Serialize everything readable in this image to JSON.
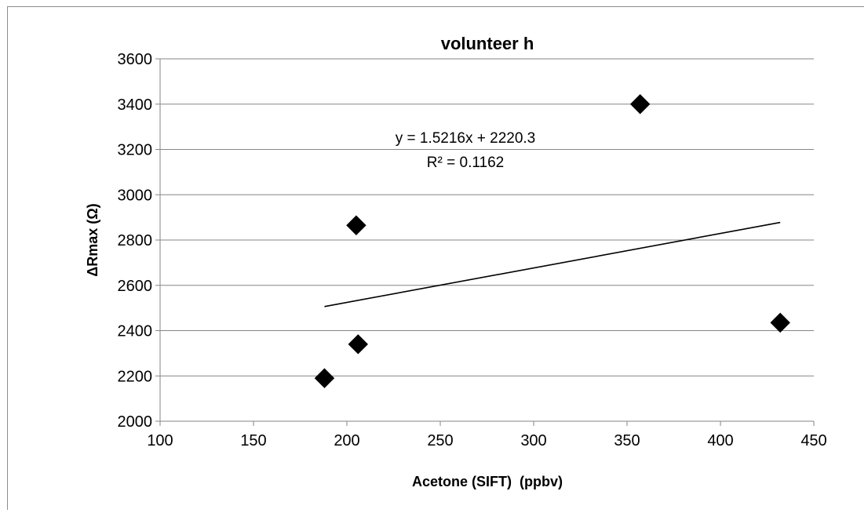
{
  "chart_data": {
    "type": "scatter",
    "title": "volunteer h",
    "xlabel": "Acetone (SIFT)  (ppbv)",
    "ylabel": "ΔRmax (Ω)",
    "xlim": [
      100,
      450
    ],
    "ylim": [
      2000,
      3600
    ],
    "xticks": [
      100,
      150,
      200,
      250,
      300,
      350,
      400,
      450
    ],
    "yticks": [
      2000,
      2200,
      2400,
      2600,
      2800,
      3000,
      3200,
      3400,
      3600
    ],
    "grid": "horizontal",
    "marker": "diamond",
    "series": [
      {
        "x": [
          188,
          205,
          206,
          357,
          432
        ],
        "y": [
          2190,
          2865,
          2340,
          3400,
          2435
        ]
      }
    ],
    "trendline": {
      "type": "linear",
      "slope": 1.5216,
      "intercept": 2220.3,
      "x_range": [
        188,
        432
      ],
      "equation": "y = 1.5216x + 2220.3",
      "r_squared": "R² = 0.1162"
    }
  }
}
